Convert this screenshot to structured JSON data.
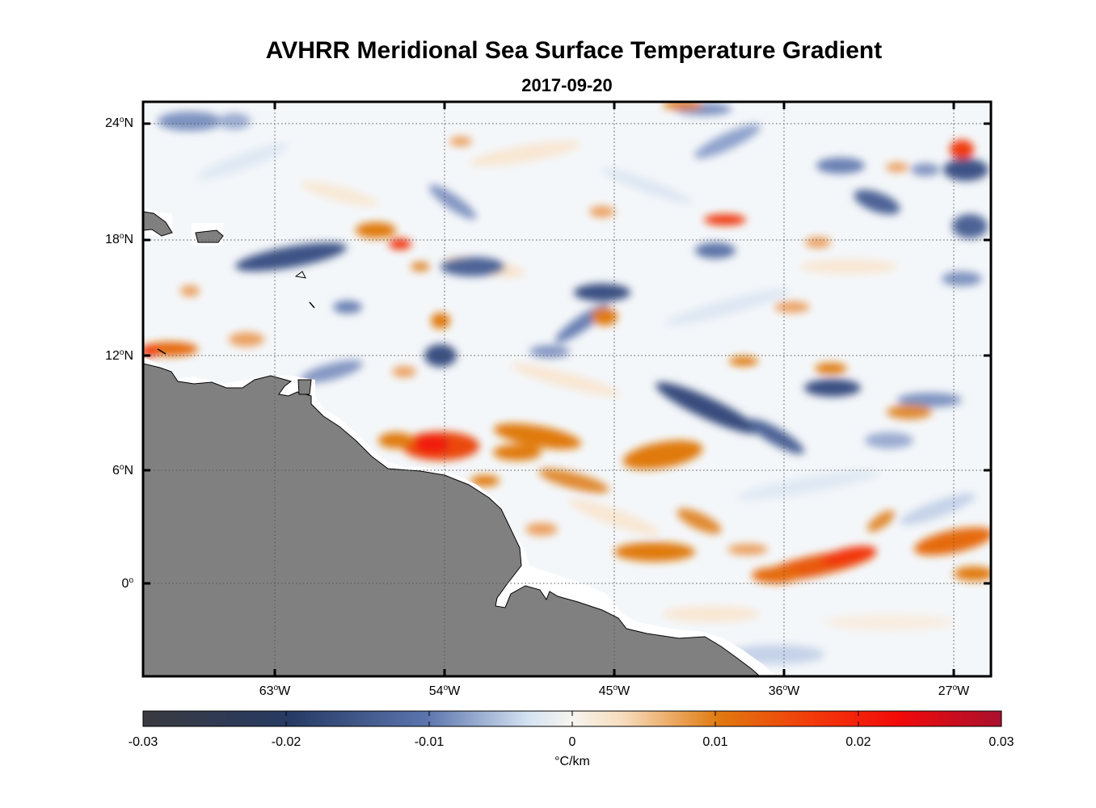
{
  "title": "AVHRR Meridional Sea Surface Temperature Gradient",
  "subtitle": "2017-09-20",
  "map": {
    "land_color": "#808080",
    "coast_color": "#ffffff",
    "lat_labels": [
      {
        "deg": "24",
        "hem": "N"
      },
      {
        "deg": "18",
        "hem": "N"
      },
      {
        "deg": "12",
        "hem": "N"
      },
      {
        "deg": "6",
        "hem": "N"
      },
      {
        "deg": "0",
        "hem": ""
      }
    ],
    "lon_labels": [
      {
        "deg": "63",
        "hem": "W"
      },
      {
        "deg": "54",
        "hem": "W"
      },
      {
        "deg": "45",
        "hem": "W"
      },
      {
        "deg": "36",
        "hem": "W"
      },
      {
        "deg": "27",
        "hem": "W"
      }
    ]
  },
  "colorbar": {
    "ticks": [
      "-0.03",
      "-0.02",
      "-0.01",
      "0",
      "0.01",
      "0.02",
      "0.03"
    ],
    "units": "°C/km",
    "colors": [
      "#3a3a3f",
      "#263a63",
      "#5b74ad",
      "#d6e3f2",
      "#f7f3ea",
      "#f7dcbc",
      "#e07a10",
      "#f23a0a",
      "#f20a0a",
      "#a8102e"
    ]
  }
}
